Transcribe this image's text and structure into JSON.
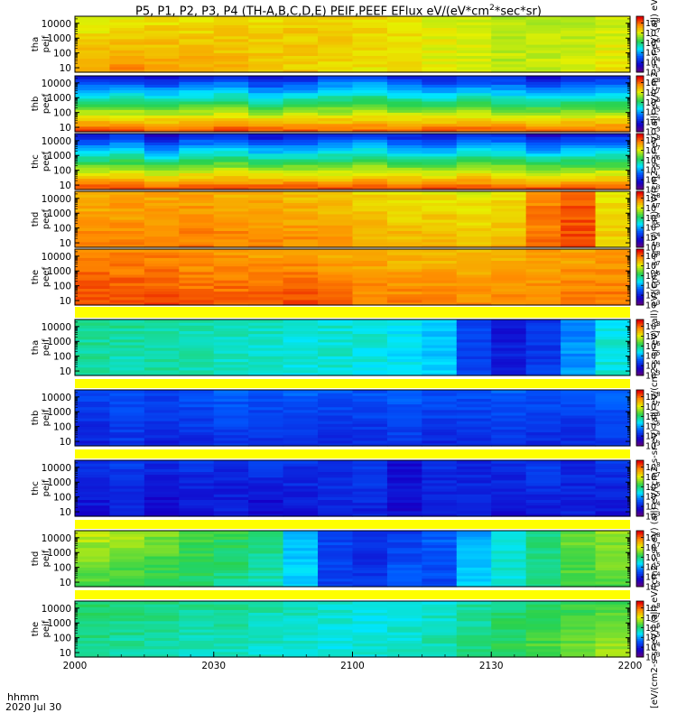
{
  "title": {
    "prefix": "P5, P1, P2, P3, P4 (TH-A,B,C,D,E) PEIF,PEEF EFlux eV/(eV*cm",
    "sup": "2",
    "suffix": "*sec*sr)"
  },
  "colorbar_unit_text": "[eV/(cm2-s-sr-eV)] (all) eV/(cm2-s-sr-eV) (all) eV/(cm2-s-sr-eV) (all) eV/(cm2-s-sr-eV) (all) eV/(cm2-s-sr-eV) (all) eV/(cm2-s-sr-eV) (all) eV/(cm2-s-sr-eV) (all) eV/(cm2-s-sr-eV) (all) eV/(cm2-s-sr-eV) (all) eV/(cm2-s-sr-eV)",
  "footer": {
    "time_label": "hhmm",
    "date_label": "2020 Jul 30"
  },
  "colors": {
    "separator": "#ffff00",
    "axis": "#000000"
  },
  "chart_data": {
    "type": "heatmap",
    "title": "P5, P1, P2, P3, P4 (TH-A,B,C,D,E) PEIF,PEEF EFlux eV/(eV*cm2*sec*sr)",
    "x_ticks": [
      "2000",
      "2030",
      "2100",
      "2130",
      "2200"
    ],
    "x_range_min": [
      0,
      120
    ],
    "y_scale": "log",
    "y_ticks": [
      "10000",
      "1000",
      "100",
      "10"
    ],
    "y_range_eV": [
      5,
      30000
    ],
    "colorbar_ticks": [
      {
        "base": "10",
        "exp": "8"
      },
      {
        "base": "10",
        "exp": "7"
      },
      {
        "base": "10",
        "exp": "6"
      },
      {
        "base": "10",
        "exp": "5"
      },
      {
        "base": "10",
        "exp": "4"
      },
      {
        "base": "10",
        "exp": "3"
      }
    ],
    "colorbar_range_log10": [
      3,
      8.7
    ],
    "panels": [
      {
        "probe": "tha",
        "species": "peif",
        "label1": "tha",
        "label2": "peif",
        "log_flux_low": [
          7.8,
          7.9,
          7.8,
          7.7,
          7.6,
          7.5,
          7.4,
          7.3,
          7.2,
          7.2,
          7.1,
          7.0,
          6.9,
          7.0,
          7.1,
          7.2
        ],
        "log_flux_high": [
          7.0,
          7.1,
          7.2,
          7.2,
          7.3,
          7.3,
          7.4,
          7.4,
          7.3,
          7.2,
          7.1,
          7.0,
          6.9,
          6.8,
          6.8,
          7.0
        ]
      },
      {
        "probe": "thb",
        "species": "peef",
        "label1": "thb",
        "label2": "peef",
        "log_flux_low": [
          8.3,
          8.3,
          8.2,
          8.2,
          8.3,
          8.2,
          8.2,
          8.1,
          8.1,
          8.2,
          8.2,
          8.2,
          8.1,
          8.1,
          8.1,
          8.1
        ],
        "log_flux_high": [
          4.0,
          4.1,
          3.9,
          4.1,
          4.3,
          3.8,
          4.0,
          4.4,
          4.6,
          4.1,
          3.9,
          4.2,
          4.1,
          3.8,
          4.0,
          4.1
        ]
      },
      {
        "probe": "thc",
        "species": "peef",
        "label1": "thc",
        "label2": "peef",
        "log_flux_low": [
          8.3,
          8.3,
          8.3,
          8.3,
          8.3,
          8.3,
          8.3,
          8.2,
          8.3,
          8.2,
          8.2,
          8.3,
          8.2,
          8.2,
          8.2,
          8.2
        ],
        "log_flux_high": [
          4.0,
          4.2,
          3.6,
          4.1,
          4.3,
          3.8,
          4.0,
          4.2,
          4.4,
          4.0,
          3.9,
          4.2,
          4.3,
          3.7,
          4.0,
          4.1
        ]
      },
      {
        "probe": "thd",
        "species": "peef",
        "label1": "thd",
        "label2": "peef",
        "log_flux_low": [
          7.9,
          7.9,
          8.0,
          8.0,
          8.0,
          7.9,
          7.9,
          7.8,
          7.7,
          7.6,
          7.6,
          7.5,
          7.6,
          8.1,
          8.3,
          7.4
        ],
        "log_flux_high": [
          7.6,
          7.7,
          7.7,
          7.7,
          7.6,
          7.6,
          7.5,
          7.4,
          7.3,
          7.2,
          7.2,
          7.1,
          7.2,
          7.9,
          8.2,
          7.2
        ]
      },
      {
        "probe": "the",
        "species": "peef",
        "label1": "the",
        "label2": "peef",
        "log_flux_low": [
          8.3,
          8.3,
          8.3,
          8.2,
          8.2,
          8.2,
          8.3,
          8.1,
          8.0,
          8.0,
          8.0,
          7.9,
          7.9,
          7.9,
          8.0,
          8.0
        ],
        "log_flux_high": [
          8.0,
          7.9,
          7.9,
          7.8,
          7.8,
          7.7,
          7.7,
          7.6,
          7.6,
          7.5,
          7.5,
          7.5,
          7.6,
          7.7,
          7.7,
          7.8
        ]
      },
      {
        "probe": "tha",
        "species": "peif",
        "label1": "tha",
        "label2": "peif",
        "log_flux_low": [
          5.8,
          5.7,
          5.8,
          5.7,
          5.7,
          5.6,
          5.5,
          5.6,
          5.5,
          5.4,
          5.3,
          4.3,
          4.0,
          4.3,
          5.0,
          5.6
        ],
        "log_flux_high": [
          5.9,
          5.9,
          5.8,
          5.8,
          5.7,
          5.7,
          5.6,
          5.6,
          5.6,
          5.4,
          5.2,
          4.4,
          3.9,
          4.2,
          4.8,
          5.5
        ]
      },
      {
        "probe": "thb",
        "species": "peif",
        "label1": "thb",
        "label2": "peif",
        "log_flux_low": [
          4.0,
          4.2,
          4.0,
          4.1,
          4.2,
          4.1,
          4.2,
          4.1,
          4.1,
          4.2,
          4.1,
          4.1,
          4.2,
          4.1,
          4.1,
          4.2
        ],
        "log_flux_high": [
          4.4,
          4.5,
          4.4,
          4.5,
          4.6,
          4.5,
          4.6,
          4.5,
          4.5,
          4.6,
          4.5,
          4.5,
          4.6,
          4.5,
          4.5,
          4.6
        ]
      },
      {
        "probe": "thc",
        "species": "peif",
        "label1": "thc",
        "label2": "peif",
        "log_flux_low": [
          3.8,
          4.0,
          3.6,
          3.9,
          4.0,
          3.7,
          3.9,
          4.1,
          4.0,
          3.8,
          3.9,
          4.0,
          3.8,
          3.9,
          4.0,
          3.9
        ],
        "log_flux_high": [
          4.2,
          4.3,
          4.1,
          4.2,
          4.0,
          4.3,
          4.2,
          4.1,
          4.3,
          3.8,
          4.2,
          4.1,
          4.2,
          4.3,
          4.1,
          4.2
        ]
      },
      {
        "probe": "thd",
        "species": "peif",
        "label1": "thd",
        "label2": "peif",
        "log_flux_low": [
          6.3,
          6.2,
          6.1,
          6.0,
          5.9,
          5.7,
          5.3,
          4.3,
          4.2,
          4.6,
          4.4,
          5.2,
          5.6,
          5.9,
          6.3,
          6.4
        ],
        "log_flux_high": [
          6.9,
          6.8,
          6.6,
          6.4,
          6.2,
          6.0,
          5.2,
          4.4,
          4.1,
          4.3,
          4.6,
          5.0,
          5.6,
          6.0,
          6.5,
          6.7
        ]
      },
      {
        "probe": "the",
        "species": "peif",
        "label1": "the",
        "label2": "peif",
        "log_flux_low": [
          5.9,
          5.8,
          5.8,
          5.7,
          5.7,
          5.6,
          5.6,
          5.5,
          5.6,
          5.7,
          5.8,
          6.0,
          6.2,
          6.4,
          6.6,
          6.8
        ],
        "log_flux_high": [
          6.1,
          6.0,
          6.0,
          5.9,
          5.9,
          5.8,
          5.7,
          5.6,
          5.5,
          5.5,
          5.6,
          5.8,
          6.0,
          6.1,
          6.2,
          6.3
        ]
      }
    ]
  }
}
